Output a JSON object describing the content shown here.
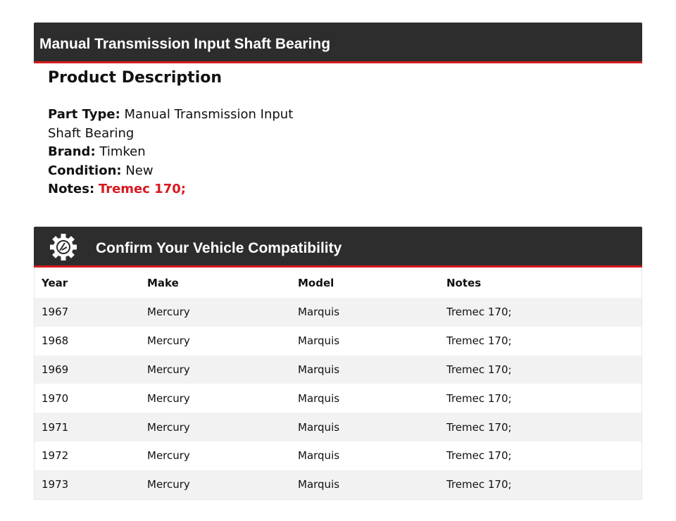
{
  "title": "Manual Transmission Input Shaft Bearing",
  "description": {
    "heading": "Product Description",
    "part_type_label": "Part Type:",
    "part_type": "Manual Transmission Input Shaft Bearing",
    "brand_label": "Brand:",
    "brand": "Timken",
    "condition_label": "Condition:",
    "condition": "New",
    "notes_label": "Notes:",
    "notes": "Tremec 170;"
  },
  "compat": {
    "title": "Confirm Your Vehicle Compatibility",
    "icon": "gear-icon",
    "headers": [
      "Year",
      "Make",
      "Model",
      "Notes"
    ],
    "rows": [
      [
        "1967",
        "Mercury",
        "Marquis",
        "Tremec 170;"
      ],
      [
        "1968",
        "Mercury",
        "Marquis",
        "Tremec 170;"
      ],
      [
        "1969",
        "Mercury",
        "Marquis",
        "Tremec 170;"
      ],
      [
        "1970",
        "Mercury",
        "Marquis",
        "Tremec 170;"
      ],
      [
        "1971",
        "Mercury",
        "Marquis",
        "Tremec 170;"
      ],
      [
        "1972",
        "Mercury",
        "Marquis",
        "Tremec 170;"
      ],
      [
        "1973",
        "Mercury",
        "Marquis",
        "Tremec 170;"
      ]
    ]
  },
  "colors": {
    "accent": "#d71920",
    "header_bg": "#2d2d2d"
  }
}
